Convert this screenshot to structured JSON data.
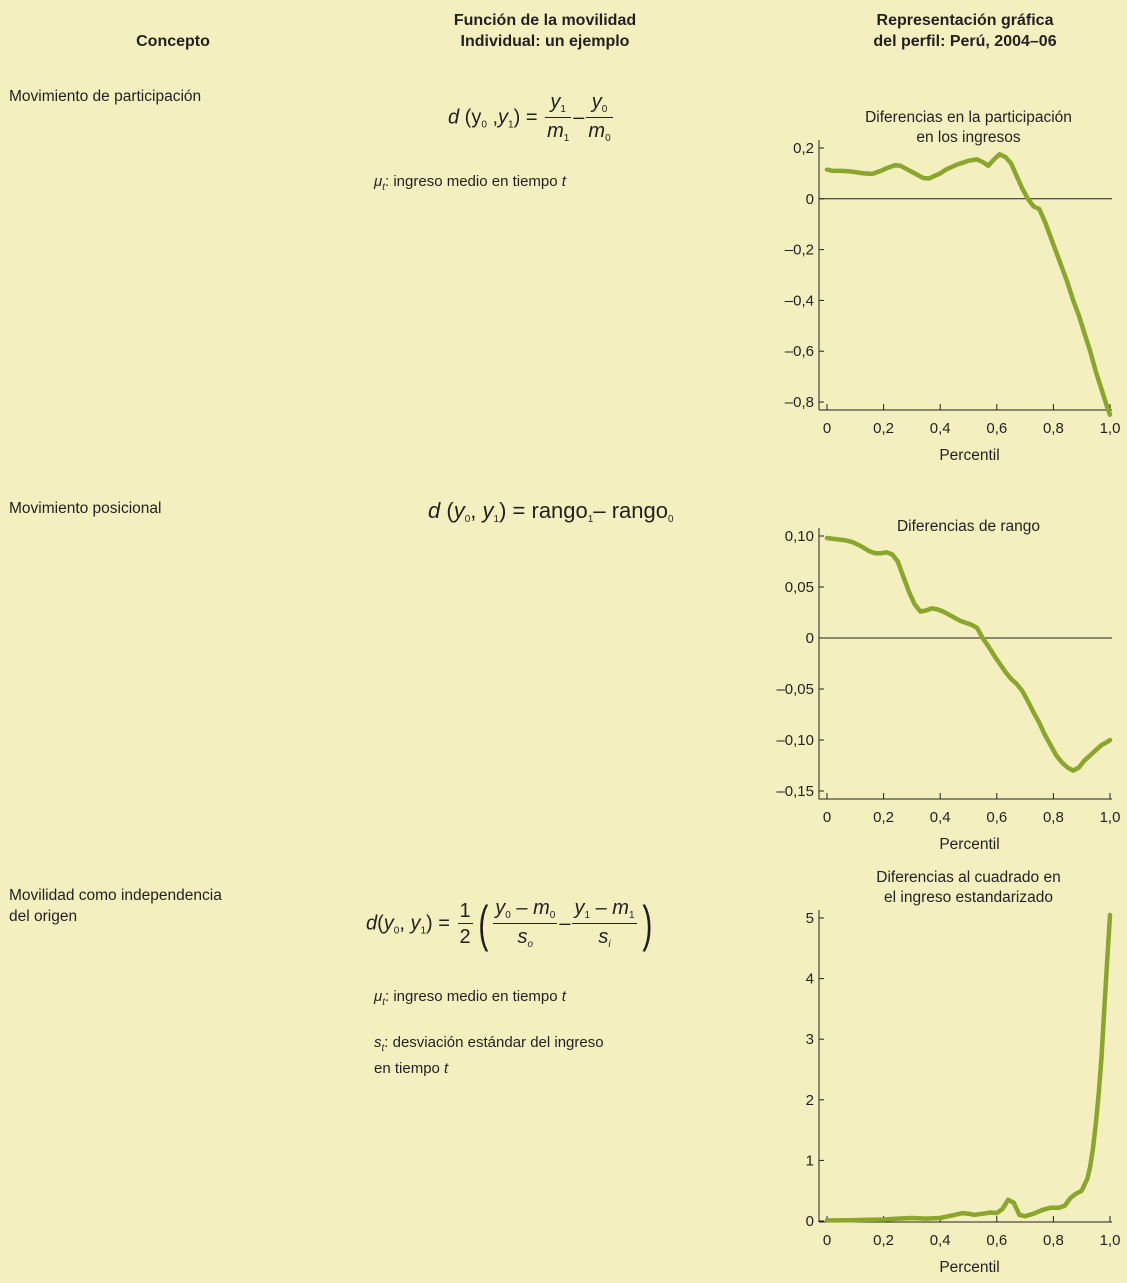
{
  "headers": {
    "concept": "Concepto",
    "function_line1": "Función de la movilidad",
    "function_line2": "Individual: un ejemplo",
    "graph_line1": "Representación gráfica",
    "graph_line2": "del perfil: Perú, 2004–06"
  },
  "rows": [
    {
      "concept_lines": [
        "Movimiento de participación"
      ],
      "formula": {
        "d": "d",
        "y0": "y",
        "y1": "y",
        "s0": "0",
        "s1": "1",
        "m": "m",
        "eq": "=",
        "minus": "–"
      },
      "notes": [
        {
          "sym": "μ",
          "sub": "t",
          "text": ": ingreso medio en tiempo ",
          "t": "t"
        }
      ]
    },
    {
      "concept_lines": [
        "Movimiento posicional"
      ],
      "formula": {
        "d": "d",
        "y": "y",
        "s0": "0",
        "s1": "1",
        "eq": "=",
        "rango": "rango",
        "minus": "–"
      },
      "notes": []
    },
    {
      "concept_lines": [
        "Movilidad como independencia",
        "del origen"
      ],
      "formula": {
        "d": "d",
        "y": "y",
        "m": "m",
        "s": "s",
        "so": "o",
        "si": "i",
        "s0": "0",
        "s1": "1",
        "one": "1",
        "two": "2",
        "eq": "=",
        "minus": "–"
      },
      "notes": [
        {
          "sym": "μ",
          "sub": "t",
          "text": ": ingreso medio en tiempo ",
          "t": "t"
        },
        {
          "sym": "s",
          "sub": "t",
          "text": ": desviación estándar del ingreso",
          "line2": "en tiempo ",
          "t": "t"
        }
      ]
    }
  ],
  "chart_data": [
    {
      "type": "line",
      "title_lines": [
        "Diferencias en la participación",
        "en los ingresos"
      ],
      "xlabel": "Percentil",
      "xlim": [
        0,
        1.0
      ],
      "ylim": [
        -0.85,
        0.22
      ],
      "yticks": [
        0.2,
        0,
        -0.2,
        -0.4,
        -0.6,
        -0.8
      ],
      "ytick_labels": [
        "0,2",
        "0",
        "–0,2",
        "–0,4",
        "–0,6",
        "–0,8"
      ],
      "xticks": [
        0,
        0.2,
        0.4,
        0.6,
        0.8,
        1.0
      ],
      "xtick_labels": [
        "0",
        "0,2",
        "0,4",
        "0,6",
        "0,8",
        "1,0"
      ],
      "zero_line": true,
      "color": "#8aa62c",
      "series": [
        {
          "x": [
            0,
            0.02,
            0.05,
            0.08,
            0.1,
            0.13,
            0.16,
            0.19,
            0.21,
            0.24,
            0.26,
            0.28,
            0.31,
            0.34,
            0.36,
            0.38,
            0.4,
            0.42,
            0.44,
            0.46,
            0.48,
            0.5,
            0.53,
            0.55,
            0.57,
            0.59,
            0.61,
            0.63,
            0.65,
            0.67,
            0.69,
            0.71,
            0.73,
            0.75,
            0.77,
            0.79,
            0.81,
            0.83,
            0.85,
            0.87,
            0.89,
            0.91,
            0.93,
            0.95,
            0.97,
            0.99,
            1.0
          ],
          "y": [
            0.115,
            0.11,
            0.11,
            0.108,
            0.105,
            0.1,
            0.098,
            0.11,
            0.12,
            0.132,
            0.13,
            0.118,
            0.1,
            0.082,
            0.08,
            0.09,
            0.1,
            0.115,
            0.125,
            0.135,
            0.142,
            0.15,
            0.155,
            0.145,
            0.13,
            0.155,
            0.175,
            0.165,
            0.14,
            0.09,
            0.04,
            0.0,
            -0.03,
            -0.04,
            -0.09,
            -0.15,
            -0.21,
            -0.27,
            -0.33,
            -0.4,
            -0.46,
            -0.53,
            -0.6,
            -0.68,
            -0.75,
            -0.82,
            -0.85
          ]
        }
      ]
    },
    {
      "type": "line",
      "title_lines": [
        "Diferencias de rango"
      ],
      "xlabel": "Percentil",
      "xlim": [
        0,
        1.0
      ],
      "ylim": [
        -0.15,
        0.105
      ],
      "yticks": [
        0.1,
        0.05,
        0,
        -0.05,
        -0.1,
        -0.15
      ],
      "ytick_labels": [
        "0,10",
        "0,05",
        "0",
        "–0,05",
        "–0,10",
        "–0,15"
      ],
      "xticks": [
        0,
        0.2,
        0.4,
        0.6,
        0.8,
        1.0
      ],
      "xtick_labels": [
        "0",
        "0,2",
        "0,4",
        "0,6",
        "0,8",
        "1,0"
      ],
      "zero_line": true,
      "color": "#8aa62c",
      "series": [
        {
          "x": [
            0,
            0.03,
            0.06,
            0.09,
            0.12,
            0.15,
            0.17,
            0.19,
            0.21,
            0.23,
            0.25,
            0.27,
            0.29,
            0.31,
            0.33,
            0.35,
            0.37,
            0.39,
            0.41,
            0.43,
            0.45,
            0.47,
            0.49,
            0.51,
            0.53,
            0.55,
            0.57,
            0.59,
            0.61,
            0.63,
            0.65,
            0.67,
            0.69,
            0.71,
            0.73,
            0.75,
            0.77,
            0.79,
            0.81,
            0.83,
            0.85,
            0.87,
            0.89,
            0.91,
            0.93,
            0.95,
            0.97,
            0.99,
            1.0
          ],
          "y": [
            0.098,
            0.097,
            0.096,
            0.094,
            0.09,
            0.085,
            0.083,
            0.083,
            0.084,
            0.082,
            0.075,
            0.06,
            0.045,
            0.033,
            0.026,
            0.027,
            0.029,
            0.028,
            0.026,
            0.023,
            0.02,
            0.017,
            0.015,
            0.013,
            0.01,
            0.0,
            -0.008,
            -0.017,
            -0.025,
            -0.033,
            -0.04,
            -0.045,
            -0.052,
            -0.062,
            -0.073,
            -0.083,
            -0.095,
            -0.105,
            -0.115,
            -0.122,
            -0.127,
            -0.13,
            -0.127,
            -0.12,
            -0.115,
            -0.11,
            -0.105,
            -0.102,
            -0.1
          ]
        }
      ]
    },
    {
      "type": "line",
      "title_lines": [
        "Diferencias al cuadrado en",
        "el ingreso estandarizado"
      ],
      "xlabel": "Percentil",
      "xlim": [
        0,
        1.0
      ],
      "ylim": [
        -0.1,
        5.1
      ],
      "yticks": [
        5,
        4,
        3,
        2,
        1,
        0
      ],
      "ytick_labels": [
        "5",
        "4",
        "3",
        "2",
        "1",
        "0"
      ],
      "xticks": [
        0,
        0.2,
        0.4,
        0.6,
        0.8,
        1.0
      ],
      "xtick_labels": [
        "0",
        "0,2",
        "0,4",
        "0,6",
        "0,8",
        "1,0"
      ],
      "zero_line": false,
      "color": "#8aa62c",
      "series": [
        {
          "x": [
            0,
            0.05,
            0.1,
            0.15,
            0.2,
            0.25,
            0.3,
            0.35,
            0.4,
            0.45,
            0.48,
            0.5,
            0.52,
            0.55,
            0.58,
            0.6,
            0.62,
            0.64,
            0.66,
            0.68,
            0.7,
            0.73,
            0.76,
            0.79,
            0.82,
            0.84,
            0.86,
            0.88,
            0.9,
            0.92,
            0.93,
            0.94,
            0.95,
            0.96,
            0.97,
            0.98,
            0.99,
            1.0
          ],
          "y": [
            0.01,
            0.01,
            0.015,
            0.02,
            0.025,
            0.04,
            0.05,
            0.04,
            0.05,
            0.1,
            0.13,
            0.12,
            0.1,
            0.12,
            0.14,
            0.13,
            0.2,
            0.35,
            0.3,
            0.1,
            0.08,
            0.12,
            0.18,
            0.22,
            0.22,
            0.25,
            0.38,
            0.45,
            0.5,
            0.7,
            0.9,
            1.2,
            1.6,
            2.1,
            2.7,
            3.5,
            4.3,
            5.05
          ]
        }
      ]
    }
  ]
}
